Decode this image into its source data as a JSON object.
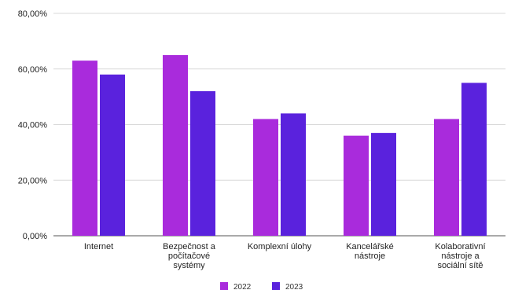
{
  "chart_data": {
    "type": "bar",
    "categories": [
      [
        "Internet"
      ],
      [
        "Bezpečnost a",
        "počítačové",
        "systémy"
      ],
      [
        "Komplexní úlohy"
      ],
      [
        "Kancelářské",
        "nástroje"
      ],
      [
        "Kolaborativní",
        "nástroje a",
        "sociální sítě"
      ]
    ],
    "series": [
      {
        "name": "2022",
        "color": "#a92bdc",
        "values": [
          63,
          65,
          42,
          36,
          42
        ]
      },
      {
        "name": "2023",
        "color": "#5a22dd",
        "values": [
          58,
          52,
          44,
          37,
          55
        ]
      }
    ],
    "ylim": [
      0,
      80
    ],
    "yticks": [
      0,
      20,
      40,
      60,
      80
    ],
    "ytick_labels": [
      "0,00%",
      "20,00%",
      "40,00%",
      "60,00%",
      "80,00%"
    ],
    "grid": true,
    "legend": "bottom-center"
  }
}
